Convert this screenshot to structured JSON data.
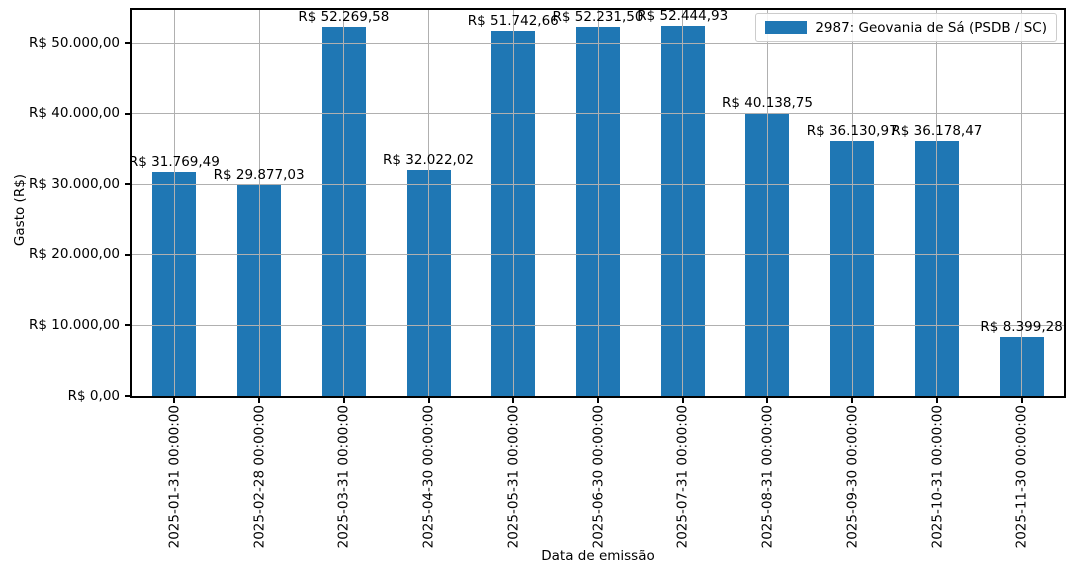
{
  "chart_data": {
    "type": "bar",
    "title": "",
    "xlabel": "Data de emissão",
    "ylabel": "Gasto (R$)",
    "categories": [
      "2025-01-31 00:00:00",
      "2025-02-28 00:00:00",
      "2025-03-31 00:00:00",
      "2025-04-30 00:00:00",
      "2025-05-31 00:00:00",
      "2025-06-30 00:00:00",
      "2025-07-31 00:00:00",
      "2025-08-31 00:00:00",
      "2025-09-30 00:00:00",
      "2025-10-31 00:00:00",
      "2025-11-30 00:00:00"
    ],
    "values": [
      31769.49,
      29877.03,
      52269.58,
      32022.02,
      51742.66,
      52231.5,
      52444.93,
      40138.75,
      36130.97,
      36178.47,
      8399.28
    ],
    "bar_labels": [
      "R$ 31.769,49",
      "R$ 29.877,03",
      "R$ 52.269,58",
      "R$ 32.022,02",
      "R$ 51.742,66",
      "R$ 52.231,50",
      "R$ 52.444,93",
      "R$ 40.138,75",
      "R$ 36.130,97",
      "R$ 36.178,47",
      "R$ 8.399,28"
    ],
    "yticks": {
      "values": [
        0,
        10000,
        20000,
        30000,
        40000,
        50000
      ],
      "labels": [
        "R$ 0,00",
        "R$ 10.000,00",
        "R$ 20.000,00",
        "R$ 30.000,00",
        "R$ 40.000,00",
        "R$ 50.000,00"
      ]
    },
    "ylim": [
      0,
      54700
    ],
    "grid": true,
    "legend": {
      "label": "2987: Geovania de Sá (PSDB / SC)",
      "position": "upper right"
    },
    "colors": {
      "bar": "#1f77b4",
      "grid": "#b0b0b0",
      "spine": "#000000",
      "legend_border": "#cccccc"
    }
  }
}
